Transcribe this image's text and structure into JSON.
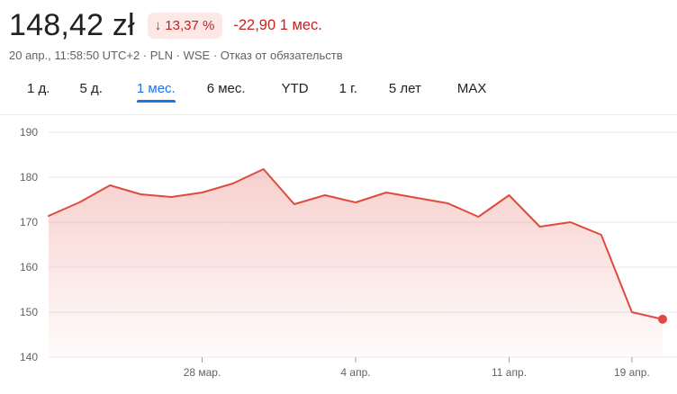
{
  "header": {
    "price": "148,42 zł",
    "change_percent": "13,37 %",
    "change_abs": "-22,90 1 мес.",
    "meta": "20 апр., 11:58:50 UTC+2 · PLN · WSE · Отказ от обязательств",
    "trend_icon": "arrow-down-icon"
  },
  "tabs": [
    {
      "label": "1 д.",
      "active": false
    },
    {
      "label": "5 д.",
      "active": false
    },
    {
      "label": "1 мес.",
      "active": true
    },
    {
      "label": "6 мес.",
      "active": false
    },
    {
      "label": "YTD",
      "active": false
    },
    {
      "label": "1 г.",
      "active": false
    },
    {
      "label": "5 лет",
      "active": false
    },
    {
      "label": "MAX",
      "active": false
    }
  ],
  "colors": {
    "negative": "#c5221f",
    "negative_bg": "#fce8e6",
    "line": "#e04a3f",
    "accent": "#1a73e8"
  },
  "chart_data": {
    "type": "area",
    "x": [
      "21 мар.",
      "22 мар.",
      "23 мар.",
      "24 мар.",
      "25 мар.",
      "28 мар.",
      "29 мар.",
      "30 мар.",
      "31 мар.",
      "1 апр.",
      "4 апр.",
      "5 апр.",
      "6 апр.",
      "7 апр.",
      "8 апр.",
      "11 апр.",
      "12 апр.",
      "13 апр.",
      "14 апр.",
      "19 апр.",
      "20 апр."
    ],
    "series": [
      {
        "values": [
          171.4,
          174.4,
          178.2,
          176.2,
          175.6,
          176.6,
          178.6,
          181.8,
          174.0,
          176.0,
          174.4,
          176.6,
          175.4,
          174.2,
          171.2,
          176.0,
          169.0,
          170.0,
          167.2,
          150.0,
          148.42
        ]
      }
    ],
    "xticks": [
      "28 мар.",
      "4 апр.",
      "11 апр.",
      "19 апр."
    ],
    "yticks": [
      140,
      150,
      160,
      170,
      180,
      190
    ],
    "ylim": [
      140,
      190
    ],
    "grid": true,
    "xlabel": "",
    "ylabel": ""
  }
}
